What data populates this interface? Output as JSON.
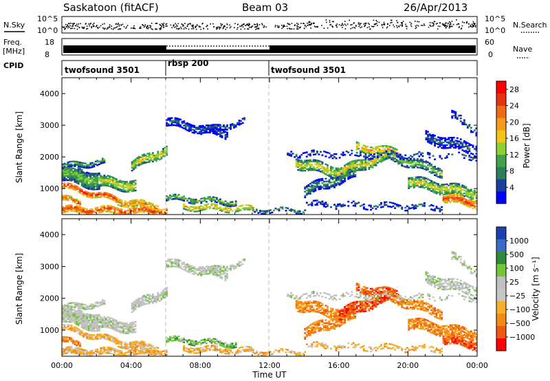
{
  "header": {
    "station": "Saskatoon (fitACF)",
    "beam": "Beam 03",
    "date": "26/Apr/2013"
  },
  "summary": {
    "nsky_label": "N.Sky",
    "nsearch_label": "N.Search",
    "nsky_ticks": [
      "10^5",
      "10^0"
    ],
    "nsky_right_ticks": [
      "10^5",
      "10^0"
    ],
    "freq_label": "Freq.",
    "freq_unit": "[MHz]",
    "freq_ticks": [
      "18",
      "8"
    ],
    "nave_label": "Nave",
    "nave_ticks": [
      "60",
      "0"
    ],
    "cpid_label": "CPID",
    "cpid_segments": [
      {
        "name": "twofsound 3501",
        "start_h": 0,
        "end_h": 6
      },
      {
        "name": "rbsp 200",
        "start_h": 6,
        "end_h": 12
      },
      {
        "name": "twofsound 3501",
        "start_h": 12,
        "end_h": 24
      }
    ]
  },
  "colors": {
    "power": [
      "#0000ff",
      "#1a3f9e",
      "#2e7d5e",
      "#3fa34a",
      "#8cd032",
      "#f2c619",
      "#f59b18",
      "#f26b14",
      "#e63312",
      "#ff0000"
    ],
    "velocity": [
      "#1f3fb0",
      "#3a6bc8",
      "#2f8a3a",
      "#74c43c",
      "#c0c0c0",
      "#c6c6c6",
      "#f7b02a",
      "#f28a16",
      "#ef5a12",
      "#ff0000"
    ]
  },
  "chart_data": [
    {
      "type": "heatmap",
      "name": "power",
      "ylabel": "Slant Range [km]",
      "xlabel": "Time UT",
      "x_ticks": [
        "00:00",
        "04:00",
        "08:00",
        "12:00",
        "16:00",
        "20:00",
        "00:00"
      ],
      "xlim": [
        0,
        24
      ],
      "ylim": [
        180,
        4500
      ],
      "y_ticks": [
        1000,
        2000,
        3000,
        4000
      ],
      "colorbar_label": "Power [dB]",
      "colorbar_ticks": [
        "4",
        "8",
        "12",
        "16",
        "20",
        "24",
        "28"
      ],
      "colorbar_range": [
        0,
        30
      ]
    },
    {
      "type": "heatmap",
      "name": "velocity",
      "ylabel": "Slant Range [km]",
      "xlabel": "Time UT",
      "x_ticks": [
        "00:00",
        "04:00",
        "08:00",
        "12:00",
        "16:00",
        "20:00",
        "00:00"
      ],
      "xlim": [
        0,
        24
      ],
      "ylim": [
        180,
        4500
      ],
      "y_ticks": [
        1000,
        2000,
        3000,
        4000
      ],
      "colorbar_label": "Velocity [m s⁻¹]",
      "colorbar_ticks": [
        "1000",
        "500",
        "100",
        "25",
        "−25",
        "−100",
        "−500",
        "−1000"
      ]
    }
  ]
}
